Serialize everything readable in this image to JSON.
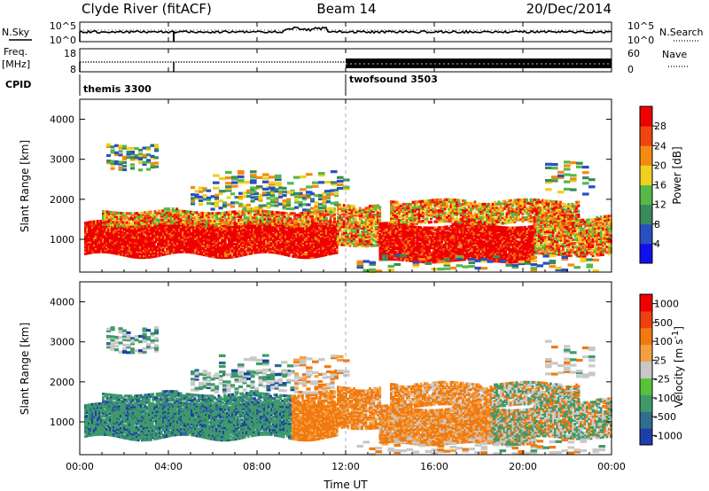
{
  "header": {
    "title": "Clyde River (fitACF)",
    "beam": "Beam 14",
    "date": "20/Dec/2014"
  },
  "top_panels": {
    "nsky_label": "N.Sky",
    "nsearch_label": "N.Search",
    "noise_ticks": [
      "10^5",
      "10^0"
    ],
    "freq_label": "Freq.",
    "freq_unit": "[MHz]",
    "freq_ticks": [
      "18",
      "8"
    ],
    "nave_label": "Nave",
    "nave_ticks": [
      "60",
      "0"
    ],
    "cpid_label": "CPID",
    "cpid_segments": [
      {
        "name": "themis 3300",
        "start_hour": 0
      },
      {
        "name": "twofsound 3503",
        "start_hour": 12
      }
    ]
  },
  "chart_data": [
    {
      "type": "heatmap",
      "name": "power",
      "ylabel": "Slant Range [km]",
      "yticks": [
        1000,
        2000,
        3000,
        4000
      ],
      "ylim": [
        180,
        4500
      ],
      "xlim": [
        0,
        24
      ],
      "colorbar": {
        "label": "Power [dB]",
        "ticks": [
          "4",
          "8",
          "12",
          "16",
          "20",
          "24",
          "28"
        ],
        "colors": [
          "#1010ee",
          "#2a4fbf",
          "#3b8a5c",
          "#57b84a",
          "#f0d020",
          "#f58a10",
          "#f04510",
          "#ee0000"
        ]
      }
    },
    {
      "type": "heatmap",
      "name": "velocity",
      "ylabel": "Slant Range [km]",
      "yticks": [
        1000,
        2000,
        3000,
        4000
      ],
      "ylim": [
        180,
        4500
      ],
      "xlim": [
        0,
        24
      ],
      "colorbar": {
        "label": "Velocity [m s",
        "label_sup": "-1",
        "label_end": "]",
        "ticks": [
          "1000",
          "500",
          "100",
          "25",
          "-25",
          "-100",
          "-500",
          "-1000"
        ],
        "colors": [
          "#1f3fa8",
          "#2f6e8e",
          "#3f9a6a",
          "#57c33c",
          "#c8c8c8",
          "#f5a040",
          "#f07a10",
          "#ee4010",
          "#ee0000"
        ]
      }
    }
  ],
  "time_axis": {
    "xlabel": "Time UT",
    "ticks": [
      "00:00",
      "04:00",
      "08:00",
      "12:00",
      "16:00",
      "20:00",
      "00:00"
    ]
  }
}
